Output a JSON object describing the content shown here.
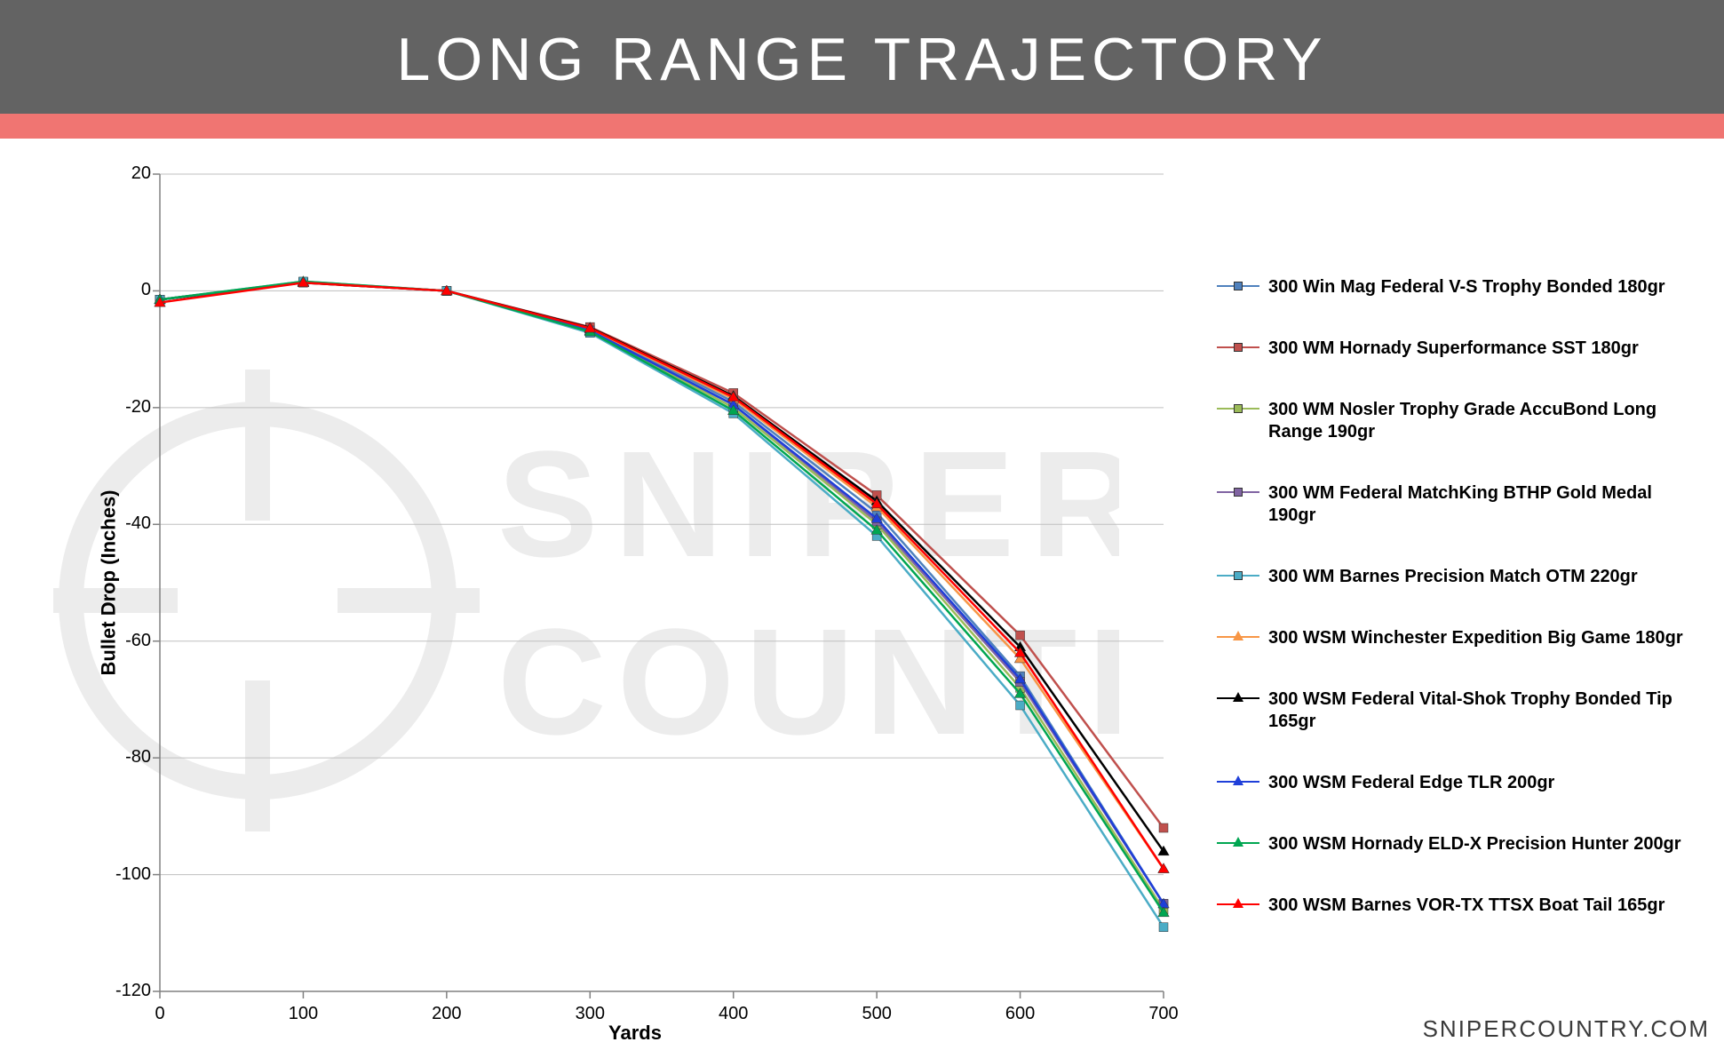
{
  "title": "LONG RANGE TRAJECTORY",
  "attribution": "SNIPERCOUNTRY.COM",
  "chart": {
    "type": "line",
    "xlabel": "Yards",
    "ylabel": "Bullet Drop (Inches)",
    "xlim": [
      0,
      700
    ],
    "ylim": [
      -120,
      20
    ],
    "xtick_step": 100,
    "ytick_step": 20,
    "background_color": "#ffffff",
    "grid_color": "#bfbfbf",
    "axis_color": "#808080",
    "title_fontsize": 68,
    "label_fontsize": 22,
    "tick_fontsize": 20,
    "legend_fontsize": 20,
    "line_width": 2.5,
    "marker_size": 10,
    "x_values": [
      0,
      100,
      200,
      300,
      400,
      500,
      600,
      700
    ],
    "series": [
      {
        "name": "300 Win Mag Federal V-S Trophy Bonded 180gr",
        "marker": "square",
        "color": "#4f81bd",
        "values": [
          -1.5,
          1.5,
          0,
          -6.5,
          -19,
          -38,
          -66,
          -105
        ]
      },
      {
        "name": "300 WM Hornady Superformance SST 180gr",
        "marker": "square",
        "color": "#c0504d",
        "values": [
          -1.5,
          1.4,
          0,
          -6.2,
          -17.5,
          -35,
          -59,
          -92
        ]
      },
      {
        "name": "300 WM Nosler Trophy Grade AccuBond Long Range 190gr",
        "marker": "square",
        "color": "#9bbb59",
        "values": [
          -1.5,
          1.5,
          0,
          -6.8,
          -20,
          -40,
          -68,
          -106
        ]
      },
      {
        "name": "300 WM Federal MatchKing BTHP Gold Medal 190gr",
        "marker": "square",
        "color": "#8064a2",
        "values": [
          -1.5,
          1.5,
          0,
          -6.8,
          -19.5,
          -39.5,
          -67,
          -105
        ]
      },
      {
        "name": "300 WM Barnes Precision Match OTM 220gr",
        "marker": "square",
        "color": "#4bacc6",
        "values": [
          -1.5,
          1.6,
          0,
          -7.2,
          -21,
          -42,
          -71,
          -109
        ]
      },
      {
        "name": "300 WSM Winchester Expedition Big Game 180gr",
        "marker": "triangle",
        "color": "#f79646",
        "values": [
          -1.5,
          1.5,
          0,
          -6.5,
          -18.5,
          -37,
          -63,
          -99
        ]
      },
      {
        "name": "300 WSM Federal Vital-Shok Trophy Bonded Tip 165gr",
        "marker": "triangle",
        "color": "#000000",
        "values": [
          -1.5,
          1.4,
          0,
          -6.3,
          -18,
          -36,
          -61,
          -96
        ]
      },
      {
        "name": "300 WSM Federal Edge TLR 200gr",
        "marker": "triangle",
        "color": "#1f3fd9",
        "values": [
          -1.5,
          1.5,
          0,
          -6.8,
          -19.5,
          -39,
          -66.5,
          -105
        ]
      },
      {
        "name": "300 WSM Hornady ELD-X Precision Hunter 200gr",
        "marker": "triangle",
        "color": "#00a651",
        "values": [
          -1.5,
          1.6,
          0,
          -7,
          -20.5,
          -41,
          -69,
          -106.5
        ]
      },
      {
        "name": "300 WSM Barnes VOR-TX TTSX Boat Tail 165gr",
        "marker": "triangle",
        "color": "#ff0000",
        "values": [
          -2,
          1.4,
          0,
          -6.4,
          -18.2,
          -36.5,
          -62,
          -99
        ]
      }
    ]
  },
  "colors": {
    "title_bg": "#636363",
    "title_fg": "#ffffff",
    "accent": "#f07572"
  }
}
